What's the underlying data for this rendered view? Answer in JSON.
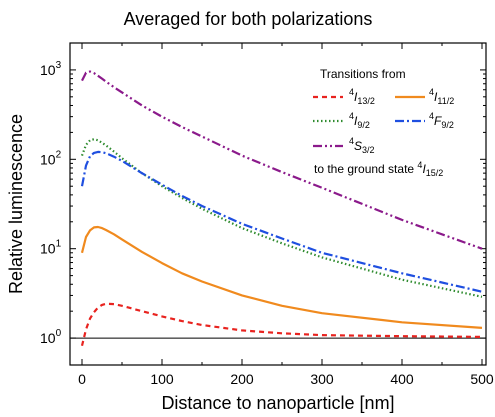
{
  "chart_data": {
    "type": "line",
    "title": "Averaged for both polarizations",
    "xlabel": "Distance to nanoparticle [nm]",
    "ylabel": "Relative luminescence",
    "xlim": [
      -15,
      505
    ],
    "ylim": [
      0.5,
      2000
    ],
    "y_scale": "log",
    "x_ticks": [
      "0",
      "100",
      "200",
      "300",
      "400",
      "500"
    ],
    "y_ticks": [
      {
        "base": "10",
        "exp": "0"
      },
      {
        "base": "10",
        "exp": "1"
      },
      {
        "base": "10",
        "exp": "2"
      },
      {
        "base": "10",
        "exp": "3"
      }
    ],
    "reference_line": {
      "y": 1
    },
    "legend": {
      "header": "Transitions from",
      "footer": "to the ground state",
      "ground_state": {
        "sup": "4",
        "base": "I",
        "sub": "15/2"
      },
      "placement": "top-right"
    },
    "series": [
      {
        "name_sup": "4",
        "name_base": "I",
        "name_sub": "13/2",
        "color": "#e8231f",
        "dash": "dashed",
        "x": [
          0,
          5,
          10,
          15,
          20,
          25,
          30,
          40,
          50,
          75,
          100,
          125,
          150,
          200,
          250,
          300,
          400,
          500
        ],
        "y": [
          0.82,
          1.25,
          1.65,
          1.95,
          2.2,
          2.35,
          2.42,
          2.4,
          2.3,
          2.0,
          1.75,
          1.55,
          1.4,
          1.22,
          1.13,
          1.08,
          1.05,
          1.03
        ]
      },
      {
        "name_sup": "4",
        "name_base": "I",
        "name_sub": "11/2",
        "color": "#f08a1e",
        "dash": "solid",
        "x": [
          0,
          5,
          10,
          15,
          20,
          25,
          30,
          40,
          50,
          75,
          100,
          125,
          150,
          200,
          250,
          300,
          400,
          500
        ],
        "y": [
          9,
          13.5,
          16,
          17.3,
          17.5,
          17,
          16.2,
          14.5,
          12.7,
          9.2,
          6.9,
          5.3,
          4.3,
          3.0,
          2.3,
          1.9,
          1.5,
          1.3
        ]
      },
      {
        "name_sup": "4",
        "name_base": "I",
        "name_sub": "9/2",
        "color": "#2e8b2e",
        "dash": "dotted",
        "x": [
          0,
          5,
          10,
          15,
          20,
          25,
          30,
          40,
          50,
          75,
          100,
          125,
          150,
          200,
          250,
          300,
          400,
          500
        ],
        "y": [
          110,
          145,
          163,
          168,
          163,
          153,
          143,
          122,
          103,
          70,
          50,
          37,
          28,
          17,
          11.5,
          8,
          4.5,
          2.9
        ]
      },
      {
        "name_sup": "4",
        "name_base": "F",
        "name_sub": "9/2",
        "color": "#1f4fe0",
        "dash": "dashdot",
        "x": [
          0,
          5,
          10,
          15,
          20,
          25,
          30,
          40,
          50,
          75,
          100,
          125,
          150,
          200,
          250,
          300,
          400,
          500
        ],
        "y": [
          50,
          85,
          108,
          118,
          121,
          120,
          117,
          107,
          96,
          70,
          52,
          39,
          30,
          19,
          13,
          9,
          5.3,
          3.3
        ]
      },
      {
        "name_sup": "4",
        "name_base": "S",
        "name_sub": "3/2",
        "color": "#8b1a8b",
        "dash": "dashdotdot",
        "x": [
          0,
          5,
          10,
          15,
          20,
          25,
          30,
          40,
          50,
          75,
          100,
          125,
          150,
          200,
          250,
          300,
          400,
          500
        ],
        "y": [
          760,
          930,
          960,
          920,
          860,
          800,
          740,
          640,
          560,
          400,
          300,
          230,
          180,
          110,
          72,
          48,
          21,
          10
        ]
      }
    ]
  }
}
